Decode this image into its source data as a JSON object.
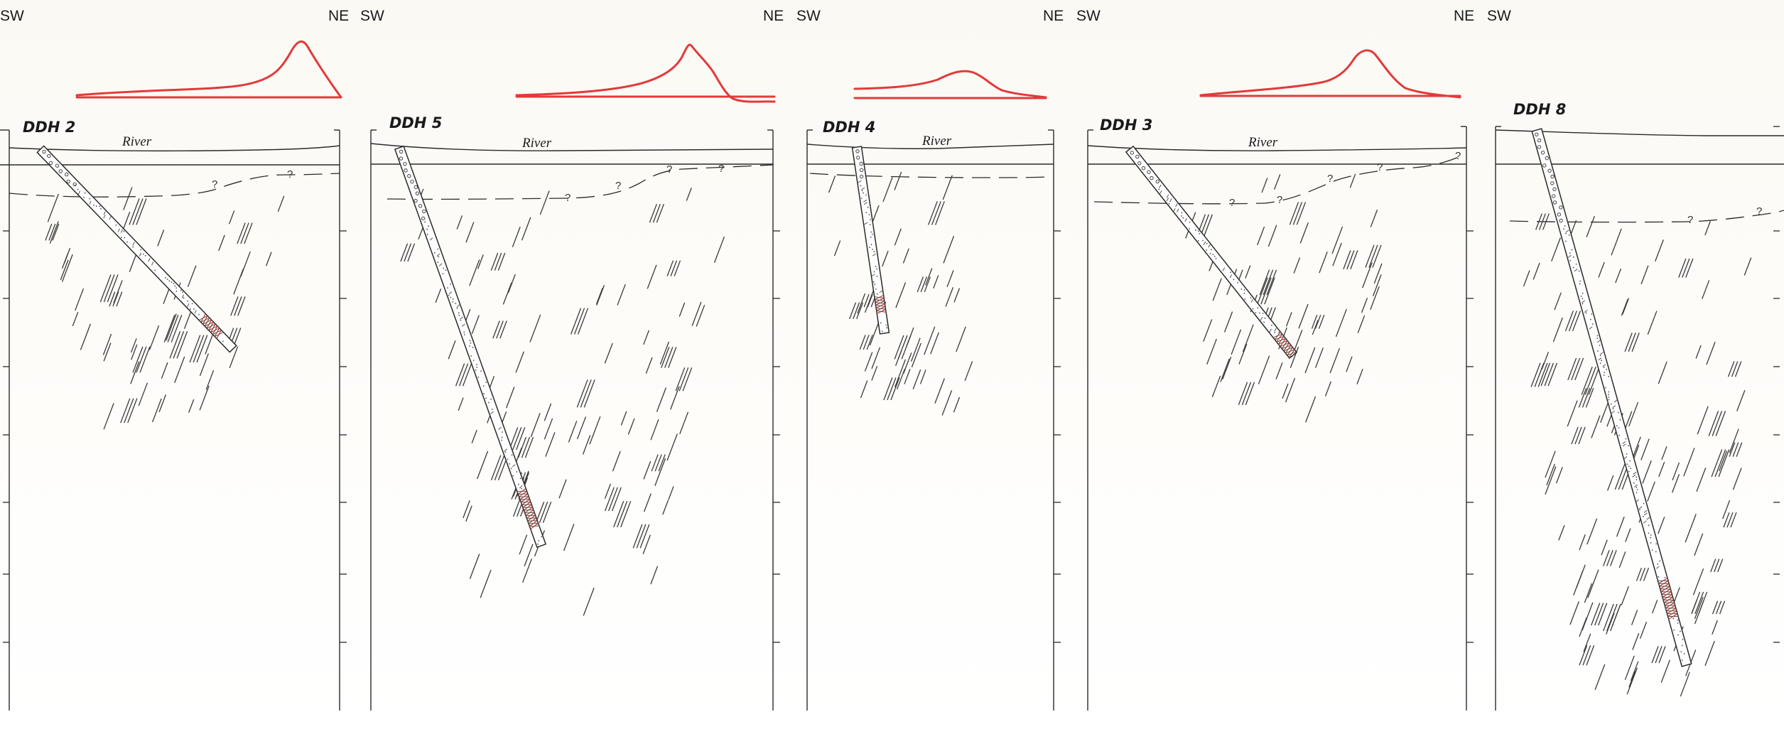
{
  "panels": [
    {
      "id": "ddh2",
      "sw_label": "SW",
      "ne_label": "NE",
      "hole_label": "DDH 2",
      "surface_label": "River"
    },
    {
      "id": "ddh5",
      "sw_label": "SW",
      "ne_label": "NE",
      "hole_label": "DDH 5",
      "surface_label": "River"
    },
    {
      "id": "ddh4",
      "sw_label": "SW",
      "ne_label": "NE",
      "hole_label": "DDH 4",
      "surface_label": "River"
    },
    {
      "id": "ddh3",
      "sw_label": "SW",
      "ne_label": "NE",
      "hole_label": "DDH 3",
      "surface_label": "River"
    },
    {
      "id": "ddh8",
      "sw_label": "SW",
      "ne_label": "",
      "hole_label": "DDH 8",
      "surface_label": ""
    }
  ],
  "uncertain_mark": "?",
  "colors": {
    "anomaly_profile": "#e23a3a",
    "linework": "#2a2a2a",
    "mineralized_zone": "#c0392b"
  }
}
